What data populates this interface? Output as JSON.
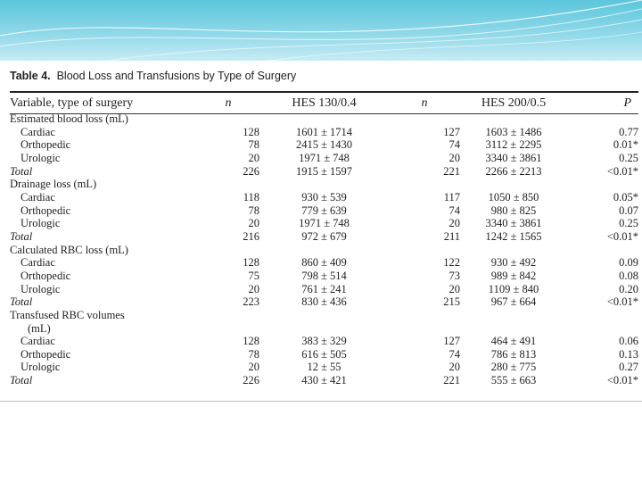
{
  "table_caption": {
    "number": "Table 4.",
    "title": "Blood Loss and Transfusions by Type of Surgery"
  },
  "headers": {
    "variable": "Variable, type of surgery",
    "n1": "n",
    "hes1": "HES 130/0.4",
    "n2": "n",
    "hes2": "HES 200/0.5",
    "p": "P"
  },
  "rows": [
    {
      "type": "section",
      "label": "Estimated blood loss (mL)"
    },
    {
      "type": "sub",
      "label": "Cardiac",
      "n1": "128",
      "hes1": "1601 ± 1714",
      "n2": "127",
      "hes2": "1603 ± 1486",
      "p": "0.77"
    },
    {
      "type": "sub",
      "label": "Orthopedic",
      "n1": "78",
      "hes1": "2415 ± 1430",
      "n2": "74",
      "hes2": "3112 ± 2295",
      "p": "0.01*"
    },
    {
      "type": "sub",
      "label": "Urologic",
      "n1": "20",
      "hes1": "1971 ± 748",
      "n2": "20",
      "hes2": "3340 ± 3861",
      "p": "0.25"
    },
    {
      "type": "total",
      "label": "Total",
      "n1": "226",
      "hes1": "1915 ± 1597",
      "n2": "221",
      "hes2": "2266 ± 2213",
      "p": "<0.01*"
    },
    {
      "type": "section",
      "label": "Drainage loss (mL)"
    },
    {
      "type": "sub",
      "label": "Cardiac",
      "n1": "118",
      "hes1": "930 ± 539",
      "n2": "117",
      "hes2": "1050 ± 850",
      "p": "0.05*"
    },
    {
      "type": "sub",
      "label": "Orthopedic",
      "n1": "78",
      "hes1": "779 ± 639",
      "n2": "74",
      "hes2": "980 ± 825",
      "p": "0.07"
    },
    {
      "type": "sub",
      "label": "Urologic",
      "n1": "20",
      "hes1": "1971 ± 748",
      "n2": "20",
      "hes2": "3340 ± 3861",
      "p": "0.25"
    },
    {
      "type": "total",
      "label": "Total",
      "n1": "216",
      "hes1": "972 ± 679",
      "n2": "211",
      "hes2": "1242 ± 1565",
      "p": "<0.01*"
    },
    {
      "type": "section",
      "label": "Calculated RBC loss (mL)"
    },
    {
      "type": "sub",
      "label": "Cardiac",
      "n1": "128",
      "hes1": "860 ± 409",
      "n2": "122",
      "hes2": "930 ± 492",
      "p": "0.09"
    },
    {
      "type": "sub",
      "label": "Orthopedic",
      "n1": "75",
      "hes1": "798 ± 514",
      "n2": "73",
      "hes2": "989 ± 842",
      "p": "0.08"
    },
    {
      "type": "sub",
      "label": "Urologic",
      "n1": "20",
      "hes1": "761 ± 241",
      "n2": "20",
      "hes2": "1109 ± 840",
      "p": "0.20"
    },
    {
      "type": "total",
      "label": "Total",
      "n1": "223",
      "hes1": "830 ± 436",
      "n2": "215",
      "hes2": "967 ± 664",
      "p": "<0.01*"
    },
    {
      "type": "section",
      "label": "Transfused RBC volumes"
    },
    {
      "type": "cont",
      "label": "(mL)"
    },
    {
      "type": "sub",
      "label": "Cardiac",
      "n1": "128",
      "hes1": "383 ± 329",
      "n2": "127",
      "hes2": "464 ± 491",
      "p": "0.06"
    },
    {
      "type": "sub",
      "label": "Orthopedic",
      "n1": "78",
      "hes1": "616 ± 505",
      "n2": "74",
      "hes2": "786 ± 813",
      "p": "0.13"
    },
    {
      "type": "sub",
      "label": "Urologic",
      "n1": "20",
      "hes1": "12 ± 55",
      "n2": "20",
      "hes2": "280 ± 775",
      "p": "0.27"
    },
    {
      "type": "total",
      "label": "Total",
      "n1": "226",
      "hes1": "430 ± 421",
      "n2": "221",
      "hes2": "555 ± 663",
      "p": "<0.01*"
    }
  ]
}
